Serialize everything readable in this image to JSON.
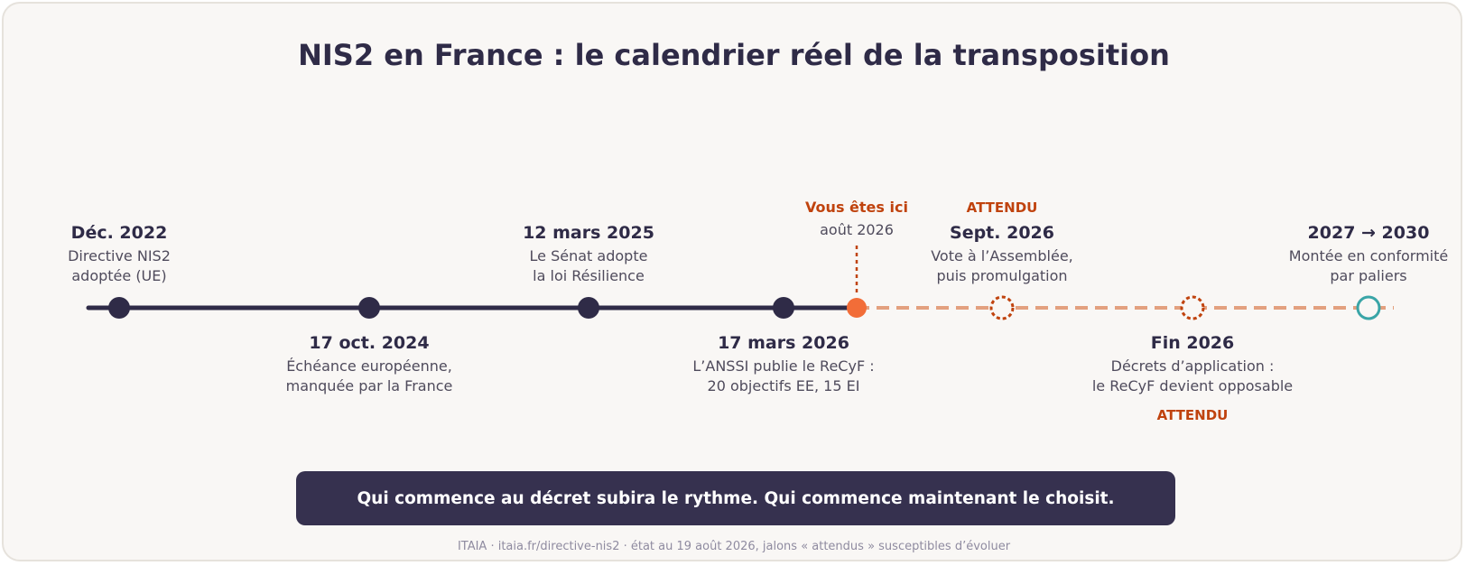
{
  "title": "NIS2 en France : le calendrier réel de la transposition",
  "colors": {
    "done": "#2f2b47",
    "current": "#f26d38",
    "pending": "#c0430e",
    "future_line": "#e3a07f",
    "final": "#3aa5a7"
  },
  "here": {
    "label": "Vous êtes ici",
    "date": "août 2026"
  },
  "milestones": [
    {
      "date": "Déc. 2022",
      "desc": "Directive NIS2\nadoptée (UE)",
      "status": "done",
      "badge": ""
    },
    {
      "date": "17 oct. 2024",
      "desc": "Échéance européenne,\nmanquée par la France",
      "status": "done",
      "badge": ""
    },
    {
      "date": "12 mars 2025",
      "desc": "Le Sénat adopte\nla loi Résilience",
      "status": "done",
      "badge": ""
    },
    {
      "date": "17 mars 2026",
      "desc": "L’ANSSI publie le ReCyF :\n20 objectifs EE, 15 EI",
      "status": "done",
      "badge": ""
    },
    {
      "date": "Sept. 2026",
      "desc": "Vote à l’Assemblée,\npuis promulgation",
      "status": "expected",
      "badge": "ATTENDU"
    },
    {
      "date": "Fin 2026",
      "desc": "Décrets d’application :\nle ReCyF devient opposable",
      "status": "expected",
      "badge": "ATTENDU"
    },
    {
      "date": "2027 → 2030",
      "desc": "Montée en conformité\npar paliers",
      "status": "final",
      "badge": ""
    }
  ],
  "banner": "Qui commence au décret subira le rythme. Qui commence maintenant le choisit.",
  "footer": "ITAIA · itaia.fr/directive-nis2 · état au 19 août 2026, jalons « attendus » susceptibles d’évoluer"
}
